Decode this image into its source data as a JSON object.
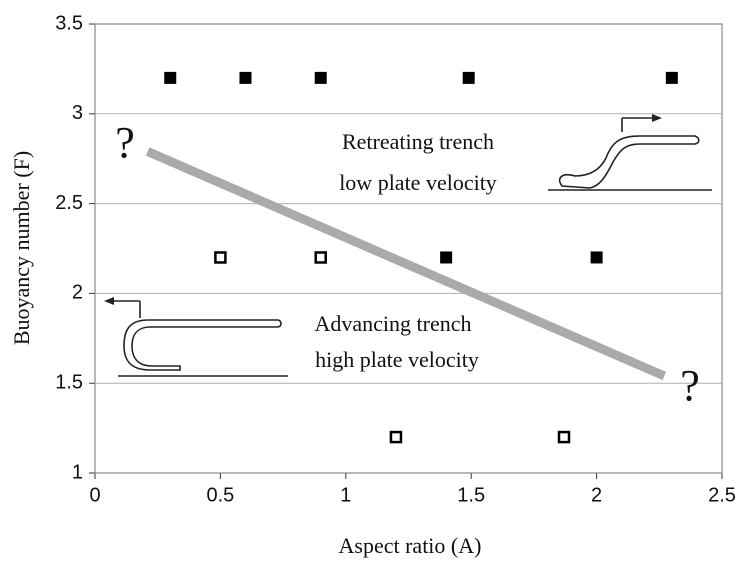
{
  "chart_data": {
    "type": "scatter",
    "xlabel": "Aspect ratio (A)",
    "ylabel": "Buoyancy number (F)",
    "xlim": [
      0,
      2.5
    ],
    "xticks": [
      0,
      0.5,
      1,
      1.5,
      2,
      2.5
    ],
    "ylim": [
      1,
      3.5
    ],
    "yticks": [
      1,
      1.5,
      2,
      2.5,
      3,
      3.5
    ],
    "grid": true,
    "series": [
      {
        "marker": "filled-square",
        "color": "#000000",
        "x": [
          0.3,
          0.6,
          0.9,
          1.49,
          2.3,
          1.4,
          2.0
        ],
        "values": [
          3.2,
          3.2,
          3.2,
          3.2,
          3.2,
          2.2,
          2.2
        ]
      },
      {
        "marker": "open-square",
        "color": "#000000",
        "x": [
          0.5,
          0.9,
          1.2,
          1.87
        ],
        "values": [
          2.2,
          2.2,
          1.2,
          1.2
        ]
      },
      {
        "marker": "line",
        "color": "#aaaaaa",
        "x": [
          0.21,
          2.27
        ],
        "values": [
          2.79,
          1.54
        ]
      }
    ],
    "annotations": [
      "Retreating trench",
      "low plate velocity",
      "Advancing trench",
      "high plate velocity",
      "?",
      "?"
    ]
  }
}
